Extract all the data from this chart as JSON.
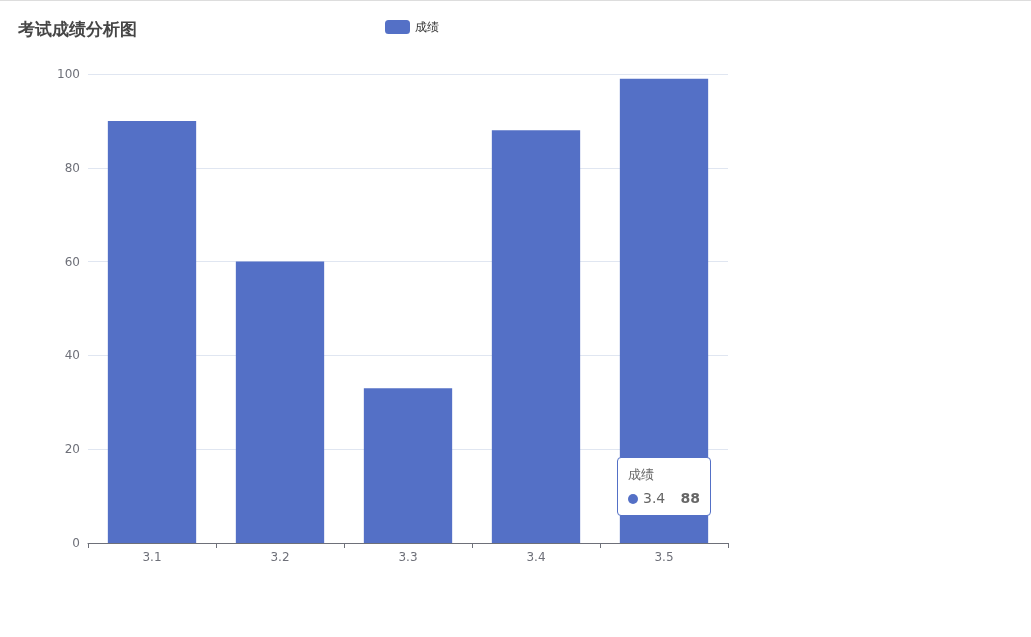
{
  "chart_data": {
    "type": "bar",
    "title": "考试成绩分析图",
    "categories": [
      "3.1",
      "3.2",
      "3.3",
      "3.4",
      "3.5"
    ],
    "series": [
      {
        "name": "成绩",
        "color": "#5470c6",
        "values": [
          90,
          60,
          33,
          88,
          99
        ]
      }
    ],
    "ylim": [
      0,
      100
    ],
    "yticks": [
      0,
      20,
      40,
      60,
      80,
      100
    ],
    "grid": "y",
    "legend": "top",
    "annotations": [
      "成绩",
      "3.4",
      "88"
    ]
  }
}
